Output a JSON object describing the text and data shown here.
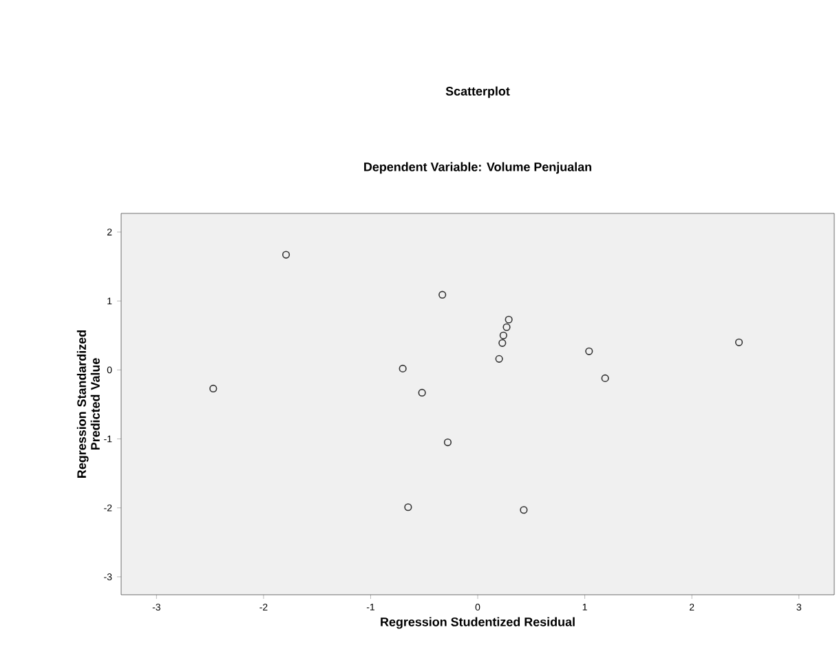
{
  "chart_data": {
    "type": "scatter",
    "title": "Scatterplot",
    "subtitle": "Dependent Variable: Volume Penjualan",
    "xlabel": "Regression Studentized Residual",
    "ylabel": "Regression Standardized Predicted Value",
    "x": [
      -1.79,
      -0.33,
      0.29,
      0.27,
      0.24,
      0.23,
      0.2,
      -0.7,
      -2.47,
      -0.52,
      -0.28,
      -0.65,
      0.43,
      1.04,
      1.19,
      2.44
    ],
    "values": [
      1.67,
      1.09,
      0.73,
      0.62,
      0.5,
      0.39,
      0.16,
      0.02,
      -0.27,
      -0.33,
      -1.05,
      -1.99,
      -2.03,
      0.27,
      -0.12,
      0.4
    ],
    "color": "#333333",
    "marker": "circle",
    "xlim": [
      -3.33,
      3.33
    ],
    "ylim": [
      -3.26,
      2.27
    ],
    "xticks": [
      -3,
      -2,
      -1,
      0,
      1,
      2,
      3
    ],
    "yticks": [
      -3,
      -2,
      -1,
      0,
      1,
      2
    ]
  }
}
